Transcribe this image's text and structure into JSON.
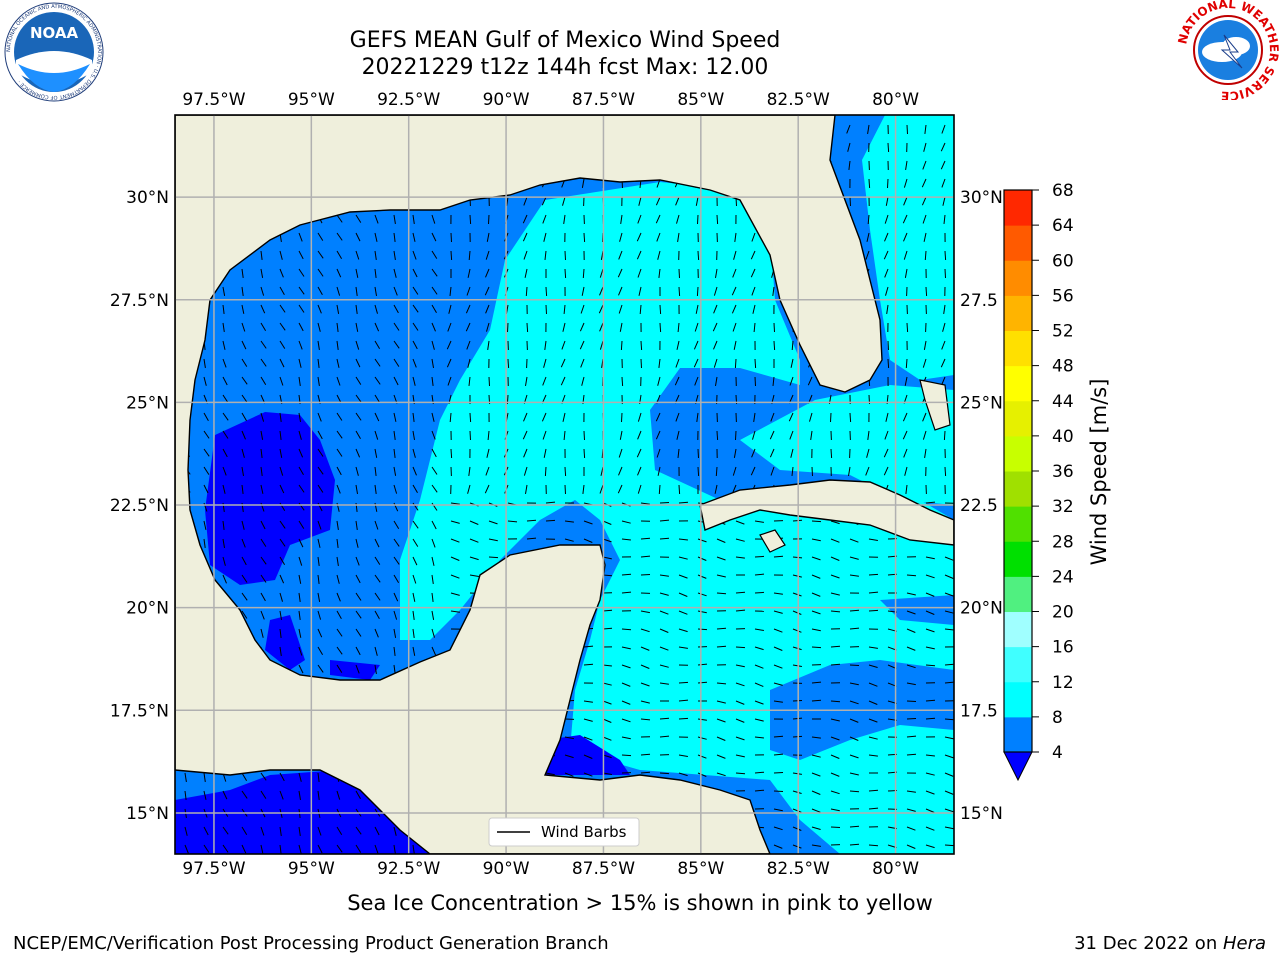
{
  "header": {
    "title_line1": "GEFS MEAN Gulf of Mexico Wind Speed",
    "title_line2": "20221229 t12z 144h fcst   Max: 12.00"
  },
  "logos": {
    "noaa_text": "NOAA",
    "noaa_ring": "NATIONAL OCEANIC AND ATMOSPHERIC ADMINISTRATION · U.S. DEPARTMENT OF COMMERCE ·",
    "nws_ring": "NATIONAL WEATHER SERVICE"
  },
  "chart_data": {
    "type": "filled-contour-map",
    "region": "Gulf of Mexico",
    "xlim": [
      -98.5,
      -78.5
    ],
    "ylim": [
      14,
      32
    ],
    "lon_ticks": [
      -97.5,
      -95,
      -92.5,
      -90,
      -87.5,
      -85,
      -82.5,
      -80
    ],
    "lon_tick_labels": [
      "97.5°W",
      "95°W",
      "92.5°W",
      "90°W",
      "87.5°W",
      "85°W",
      "82.5°W",
      "80°W"
    ],
    "lat_ticks": [
      15,
      17.5,
      20,
      22.5,
      25,
      27.5,
      30
    ],
    "lat_tick_labels_left": [
      "15°N",
      "17.5°N",
      "20°N",
      "22.5°N",
      "25°N",
      "27.5°N",
      "30°N"
    ],
    "lat_tick_labels_right": [
      "15°N",
      "17.5",
      "20°N",
      "22.5",
      "25°N",
      "27.5",
      "30°N"
    ],
    "grid": true,
    "legend": {
      "label": "Wind Barbs",
      "placement": "bottom-center"
    },
    "colorbar": {
      "label": "Wind Speed [m/s]",
      "levels": [
        4,
        8,
        12,
        16,
        20,
        24,
        28,
        32,
        36,
        40,
        44,
        48,
        52,
        56,
        60,
        64,
        68
      ],
      "colors": [
        "#0080ff",
        "#00ffff",
        "#40ffff",
        "#a0ffff",
        "#50f080",
        "#00e000",
        "#50e000",
        "#a0e000",
        "#c8ff00",
        "#e6f000",
        "#ffff00",
        "#ffe000",
        "#ffb400",
        "#ff8c00",
        "#ff5a00",
        "#ff2800"
      ],
      "extend_below_color": "#0000ff"
    },
    "series": [
      {
        "level_range": [
          0,
          4
        ],
        "color": "#0000ff"
      },
      {
        "level_range": [
          4,
          8
        ],
        "color": "#0080ff"
      },
      {
        "level_range": [
          8,
          12
        ],
        "color": "#00ffff"
      }
    ],
    "max_value": 12.0,
    "land_color": "#efefdc"
  },
  "notes": {
    "sea_ice": "Sea Ice Concentration > 15% is shown in pink to yellow"
  },
  "footer": {
    "left": "NCEP/EMC/Verification Post Processing Product Generation Branch",
    "right_date": "31 Dec 2022 on ",
    "right_machine": "Hera"
  }
}
